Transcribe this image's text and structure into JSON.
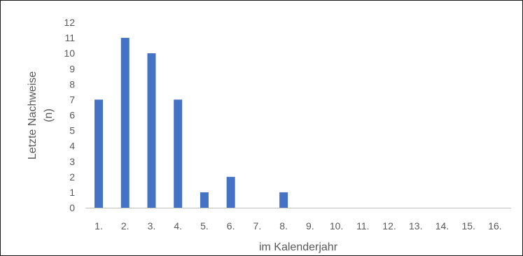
{
  "chart_data": {
    "type": "bar",
    "categories": [
      "1.",
      "2.",
      "3.",
      "4.",
      "5.",
      "6.",
      "7.",
      "8.",
      "9.",
      "10.",
      "11.",
      "12.",
      "13.",
      "14.",
      "15.",
      "16."
    ],
    "values": [
      7,
      11,
      10,
      7,
      1,
      2,
      0,
      1,
      0,
      0,
      0,
      0,
      0,
      0,
      0,
      0
    ],
    "y_ticks": [
      "0",
      "1",
      "2",
      "3",
      "4",
      "5",
      "6",
      "7",
      "8",
      "9",
      "10",
      "11",
      "12"
    ],
    "xlabel": "im Kalenderjahr",
    "ylabel_lines": [
      "Letzte Nachweise",
      "(n)"
    ],
    "ylim": [
      0,
      12
    ],
    "grid": false,
    "legend": false,
    "bar_color": "#4472c4",
    "axis_color": "#bfbfbf",
    "text_color": "#595959"
  }
}
